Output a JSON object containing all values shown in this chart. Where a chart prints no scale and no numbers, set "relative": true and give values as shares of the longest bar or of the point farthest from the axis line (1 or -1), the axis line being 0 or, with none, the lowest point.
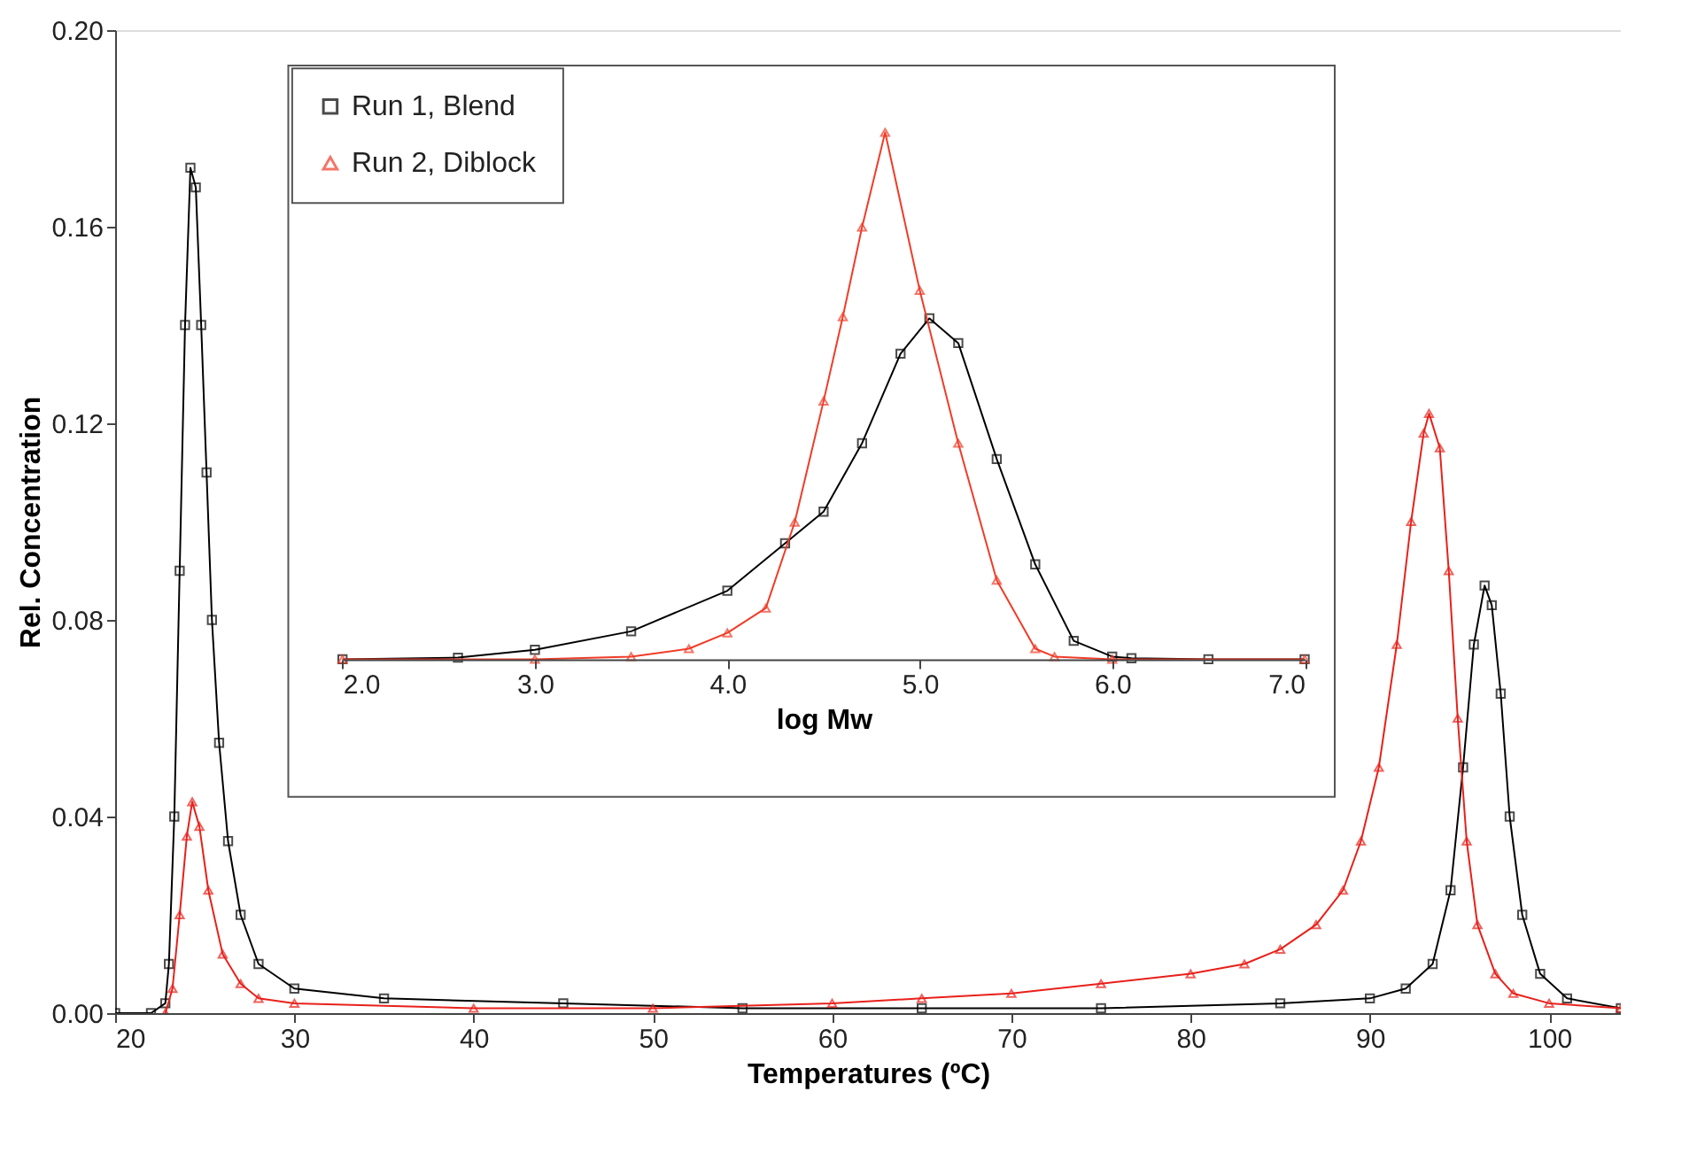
{
  "chart_data": [
    {
      "type": "line",
      "xlabel": "Temperatures (ºC)",
      "ylabel": "Rel. Concentration",
      "xlim": [
        20,
        104
      ],
      "ylim": [
        0,
        0.2
      ],
      "xticks": [
        20,
        30,
        40,
        50,
        60,
        70,
        80,
        90,
        100
      ],
      "yticks": [
        {
          "value": 0,
          "label": "0.00"
        },
        {
          "value": 0.04,
          "label": "0.04"
        },
        {
          "value": 0.08,
          "label": "0.08"
        },
        {
          "value": 0.12,
          "label": "0.12"
        },
        {
          "value": 0.16,
          "label": "0.16"
        },
        {
          "value": 0.2,
          "label": "0.20"
        }
      ],
      "grid": false,
      "legend": false,
      "series": [
        {
          "color": "#000000",
          "marker": "square",
          "x": [
            20,
            22,
            22.8,
            23,
            23.3,
            23.6,
            23.9,
            24.2,
            24.5,
            24.8,
            25.1,
            25.4,
            25.8,
            26.3,
            27,
            28,
            30,
            35,
            45,
            55,
            65,
            75,
            85,
            90,
            92,
            93.5,
            94.5,
            95.2,
            95.8,
            96.4,
            96.8,
            97.3,
            97.8,
            98.5,
            99.5,
            101,
            104
          ],
          "values": [
            0,
            0,
            0.002,
            0.01,
            0.04,
            0.09,
            0.14,
            0.172,
            0.168,
            0.14,
            0.11,
            0.08,
            0.055,
            0.035,
            0.02,
            0.01,
            0.005,
            0.003,
            0.002,
            0.001,
            0.001,
            0.001,
            0.002,
            0.003,
            0.005,
            0.01,
            0.025,
            0.05,
            0.075,
            0.087,
            0.083,
            0.065,
            0.04,
            0.02,
            0.008,
            0.003,
            0.001
          ]
        },
        {
          "color": "#e8201a",
          "marker": "triangle",
          "x": [
            22.8,
            23.2,
            23.6,
            24,
            24.3,
            24.7,
            25.2,
            26,
            27,
            28,
            30,
            40,
            50,
            60,
            65,
            70,
            75,
            80,
            83,
            85,
            87,
            88.5,
            89.5,
            90.5,
            91.5,
            92.3,
            93,
            93.3,
            93.9,
            94.4,
            94.9,
            95.4,
            96,
            97,
            98,
            100,
            104
          ],
          "values": [
            0,
            0.005,
            0.02,
            0.036,
            0.043,
            0.038,
            0.025,
            0.012,
            0.006,
            0.003,
            0.002,
            0.001,
            0.001,
            0.002,
            0.003,
            0.004,
            0.006,
            0.008,
            0.01,
            0.013,
            0.018,
            0.025,
            0.035,
            0.05,
            0.075,
            0.1,
            0.118,
            0.122,
            0.115,
            0.09,
            0.06,
            0.035,
            0.018,
            0.008,
            0.004,
            0.002,
            0.001
          ]
        }
      ]
    },
    {
      "type": "line",
      "xlabel": "log Mw",
      "relative": true,
      "xlim": [
        2,
        7
      ],
      "xticks": [
        {
          "value": 2,
          "label": "2.0"
        },
        {
          "value": 3,
          "label": "3.0"
        },
        {
          "value": 4,
          "label": "4.0"
        },
        {
          "value": 5,
          "label": "5.0"
        },
        {
          "value": 6,
          "label": "6.0"
        },
        {
          "value": 7,
          "label": "7.0"
        }
      ],
      "tick_labels": "x",
      "grid": false,
      "legend": "top left",
      "series": [
        {
          "name": "Run 1, Blend",
          "color": "#000000",
          "marker": "square",
          "x": [
            2,
            2.6,
            3,
            3.5,
            4,
            4.3,
            4.5,
            4.7,
            4.9,
            5.05,
            5.2,
            5.4,
            5.6,
            5.8,
            6,
            6.1,
            6.5,
            7
          ],
          "values": [
            0,
            0.003,
            0.018,
            0.053,
            0.13,
            0.22,
            0.28,
            0.41,
            0.58,
            0.647,
            0.6,
            0.38,
            0.18,
            0.035,
            0.005,
            0.002,
            0,
            0
          ]
        },
        {
          "name": "Run 2, Diblock",
          "color": "#f03c28",
          "marker": "triangle",
          "x": [
            2,
            3,
            3.5,
            3.8,
            4,
            4.2,
            4.35,
            4.5,
            4.6,
            4.7,
            4.82,
            5,
            5.2,
            5.4,
            5.6,
            5.7,
            6,
            7
          ],
          "values": [
            0,
            0,
            0.005,
            0.02,
            0.05,
            0.097,
            0.26,
            0.49,
            0.65,
            0.82,
            1,
            0.7,
            0.41,
            0.15,
            0.02,
            0.005,
            0,
            0
          ]
        }
      ]
    }
  ]
}
